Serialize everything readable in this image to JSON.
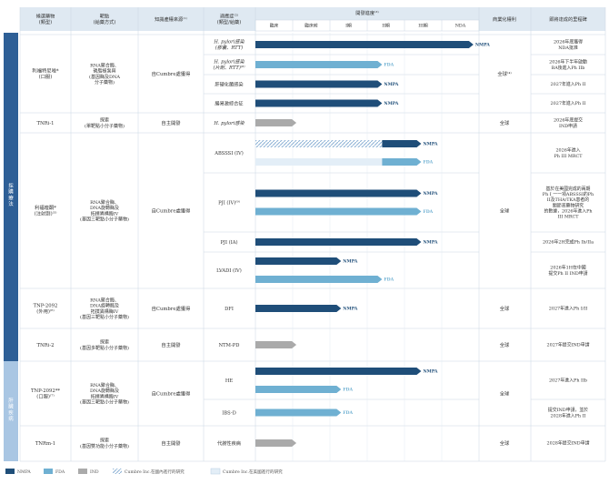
{
  "colors": {
    "header_fill": "#dfe9f2",
    "nmpa": "#1f4e79",
    "fda": "#6fb0d2",
    "ind": "#aaaaaa",
    "side_dark": "#2e5f96",
    "side_light": "#a9c6e3"
  },
  "headers": [
    "候選藥物\n(類型)",
    "靶點\n(給藥方式)",
    "知識產權來源⁽¹⁾",
    "適應症⁽²⁾\n(類型/給藥)",
    "開發進度⁽³⁾",
    "商業化權利",
    "即將達成的里程碑"
  ],
  "stages": [
    "臨床",
    "臨床前",
    "I期",
    "II期",
    "III期",
    "NDA"
  ],
  "side_groups": [
    "採購療法",
    "肝臟疾病"
  ],
  "drugs": [
    {
      "name": "利福特尼唑*\n(口服)",
      "target": "RNA聚合酶、\n磷脂樣泵與\n(基因酶及DNA\n分子藥物)",
      "ip": "自Cumbre處獲得",
      "rights": "全球⁽⁴⁾"
    },
    {
      "name": "TNRi-1",
      "target": "探索\n(單靶點小分子藥物)",
      "ip": "自主開發",
      "rights": "全球"
    },
    {
      "name": "利福喹酮*\n(注射劑)⁽⁵⁾",
      "target": "RNA聚合酶、\nDNA旋轉酶及\n拓撲異構酶IV\n(基因三靶點小分子藥物)",
      "ip": "自Cumbre處獲得",
      "rights": "全球"
    },
    {
      "name": "TNP-2092\n(外用)⁽⁶⁾",
      "target": "RNA聚合酶、\nDNA旋轉酶及\n拓撲異構酶IV\n(基因三靶點小分子藥物)",
      "ip": "自Cumbre處獲得",
      "rights": "全球"
    },
    {
      "name": "TNRi-2",
      "target": "探索\n(基因多靶點小分子藥物)",
      "ip": "自主開發",
      "rights": "全球"
    },
    {
      "name": "TNP-2092**\n(口服)⁽⁷⁾",
      "target": "RNA聚合酶、\nDNA旋轉酶及\n拓撲異構酶IV\n(基因三靶點小分子藥物)",
      "ip": "自Cumbre處獲得",
      "rights": "全球"
    },
    {
      "name": "TNRm-1",
      "target": "探索\n(基因雙功能小分子藥物)",
      "ip": "自主開發",
      "rights": "全球"
    }
  ],
  "chart_data": {
    "type": "bar",
    "stages": [
      "臨床",
      "臨床前",
      "I期",
      "II期",
      "III期",
      "NDA"
    ],
    "rows": [
      {
        "indication": "H. pylori感染\n(膠囊、RTT)",
        "bars": [
          {
            "type": "NMPA",
            "value": 5.85,
            "label": "NMPA"
          }
        ],
        "milestone": "2026年底獲得\nNDA批准"
      },
      {
        "indication": "H. pylori感染\n(片劑、RTT)⁽⁸⁾",
        "bars": [
          {
            "type": "FDA",
            "value": 3.4,
            "label": "FDA"
          }
        ],
        "milestone": "2026年下半年啟動\nBA後進入Ph IIb"
      },
      {
        "indication": "肝硬化菌感染",
        "bars": [
          {
            "type": "NMPA",
            "value": 3.4,
            "label": "NMPA"
          }
        ],
        "milestone": "2027年進入Ph II"
      },
      {
        "indication": "腸易激綜合征",
        "bars": [
          {
            "type": "NMPA",
            "value": 3.4,
            "label": "NMPA"
          }
        ],
        "milestone": "2027年進入Ph II"
      },
      {
        "indication": "H. pylori感染",
        "bars": [
          {
            "type": "IND",
            "value": 1.1,
            "label": ""
          }
        ],
        "milestone": "2026年底提交\nIND申請"
      },
      {
        "indication": "ABSSSI (IV)",
        "bars": [
          {
            "type": "Cumbre-NMPA",
            "value": 4.45,
            "label": "NMPA"
          },
          {
            "type": "Cumbre-FDA",
            "value": 4.45,
            "label": "FDA"
          }
        ],
        "milestone": "2026年進入\nPh III MRCT"
      },
      {
        "indication": "PJI (IV)⁽⁹⁾",
        "bars": [
          {
            "type": "NMPA",
            "value": 4.45,
            "label": "NMPA"
          },
          {
            "type": "FDA",
            "value": 4.45,
            "label": "FDA"
          }
        ],
        "milestone": "基於在美國完成的兩期\nPh I 一一項ABSSSI的Ph\nII及THA/TKA患者的\n關節液藥物研究\n的數據，2026年進入Ph\nIII MRCT"
      },
      {
        "indication": "PJI (IA)",
        "bars": [
          {
            "type": "NMPA",
            "value": 4.45,
            "label": "NMPA"
          }
        ],
        "milestone": "2026年2H完成Ph Ib/IIa"
      },
      {
        "indication": "LVADI (IV)",
        "bars": [
          {
            "type": "NMPA",
            "value": 2.3,
            "label": "NMPA"
          },
          {
            "type": "FDA",
            "value": 3.4,
            "label": "FDA"
          }
        ],
        "milestone": "2026年1H在中國\n提交Ph II IND申請"
      },
      {
        "indication": "DFI",
        "bars": [
          {
            "type": "NMPA",
            "value": 2.3,
            "label": "NMPA"
          }
        ],
        "milestone": "2027年進入Ph I/II"
      },
      {
        "indication": "NTM-PD",
        "bars": [
          {
            "type": "IND",
            "value": 1.1,
            "label": ""
          }
        ],
        "milestone": "2027年提交IND申請"
      },
      {
        "indication": "HE",
        "bars": [
          {
            "type": "NMPA",
            "value": 4.45,
            "label": "NMPA"
          },
          {
            "type": "FDA",
            "value": 2.3,
            "label": "FDA"
          }
        ],
        "milestone": "2027年進入Ph IIb"
      },
      {
        "indication": "IBS-D",
        "bars": [
          {
            "type": "FDA",
            "value": 2.3,
            "label": "FDA"
          }
        ],
        "milestone": "提交IND申請，並於\n2028年進入Ph II"
      },
      {
        "indication": "代謝性疾病",
        "bars": [
          {
            "type": "IND",
            "value": 1.1,
            "label": ""
          }
        ],
        "milestone": "2028年提交IND申請"
      }
    ],
    "legend": [
      "NMPA",
      "FDA",
      "IND",
      "Cumbre Inc.在國內進行的研究",
      "Cumbre Inc.在美國進行的研究"
    ]
  }
}
